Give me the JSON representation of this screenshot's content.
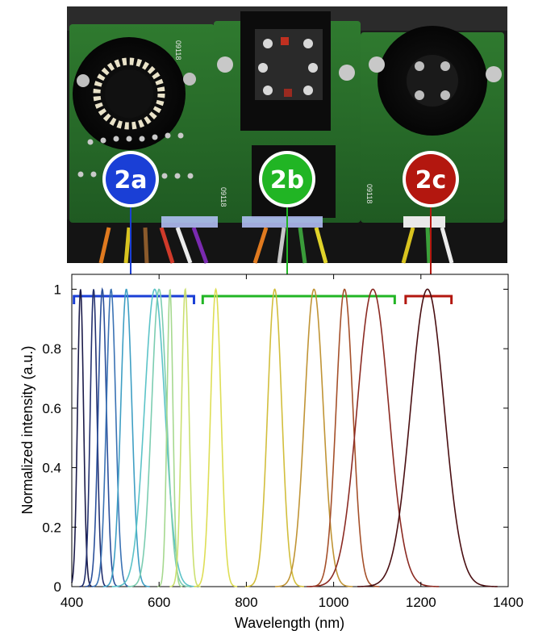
{
  "photo": {
    "pcb_labels": [
      "09118",
      "09118",
      "09118"
    ]
  },
  "badges": [
    {
      "label": "2a",
      "color": "#1a3fd6",
      "range_nm": [
        405,
        680
      ]
    },
    {
      "label": "2b",
      "color": "#21b524",
      "range_nm": [
        700,
        1140
      ]
    },
    {
      "label": "2c",
      "color": "#b3170f",
      "range_nm": [
        1165,
        1270
      ]
    }
  ],
  "chart_data": {
    "type": "line",
    "xlabel": "Wavelength (nm)",
    "ylabel": "Normalized intensity (a.u.)",
    "xlim": [
      400,
      1400
    ],
    "ylim": [
      0,
      1.05
    ],
    "xticks": [
      400,
      600,
      800,
      1000,
      1200,
      1400
    ],
    "yticks": [
      0,
      0.2,
      0.4,
      0.6,
      0.8,
      1
    ],
    "grid": false,
    "series": [
      {
        "peak_nm": 420,
        "fwhm_nm": 16,
        "color": "#1b1b4a"
      },
      {
        "peak_nm": 450,
        "fwhm_nm": 18,
        "color": "#23306f"
      },
      {
        "peak_nm": 470,
        "fwhm_nm": 22,
        "color": "#2a4f9a"
      },
      {
        "peak_nm": 490,
        "fwhm_nm": 25,
        "color": "#3a72b4"
      },
      {
        "peak_nm": 525,
        "fwhm_nm": 30,
        "color": "#3f9fc4"
      },
      {
        "peak_nm": 590,
        "fwhm_nm": 55,
        "color": "#5cc3c8"
      },
      {
        "peak_nm": 600,
        "fwhm_nm": 40,
        "color": "#7ccdb1"
      },
      {
        "peak_nm": 625,
        "fwhm_nm": 16,
        "color": "#a6d98f"
      },
      {
        "peak_nm": 660,
        "fwhm_nm": 20,
        "color": "#cbe070"
      },
      {
        "peak_nm": 730,
        "fwhm_nm": 28,
        "color": "#dede55"
      },
      {
        "peak_nm": 865,
        "fwhm_nm": 38,
        "color": "#d2be3c"
      },
      {
        "peak_nm": 955,
        "fwhm_nm": 50,
        "color": "#c09435"
      },
      {
        "peak_nm": 1025,
        "fwhm_nm": 45,
        "color": "#a5502a"
      },
      {
        "peak_nm": 1090,
        "fwhm_nm": 85,
        "color": "#8b2a22"
      },
      {
        "peak_nm": 1215,
        "fwhm_nm": 90,
        "color": "#4a0f12"
      }
    ]
  }
}
